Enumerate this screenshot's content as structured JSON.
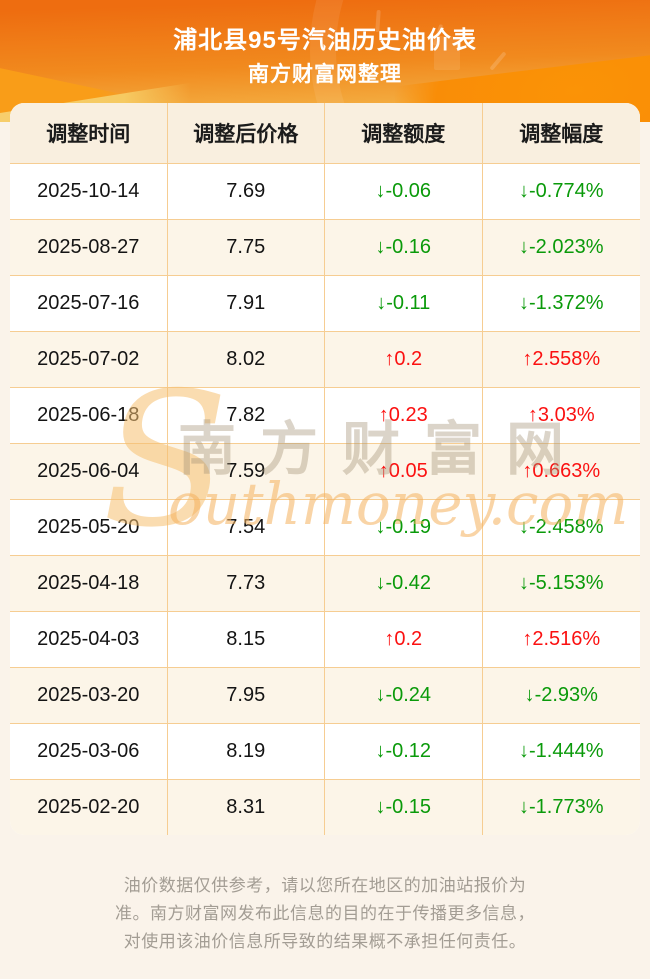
{
  "page": {
    "title": "浦北县95号汽油历史油价表",
    "subtitle": "南方财富网整理"
  },
  "table": {
    "headers": [
      "调整时间",
      "调整后价格",
      "调整额度",
      "调整幅度"
    ],
    "rows": [
      {
        "date": "2025-10-14",
        "price": "7.69",
        "amount": "↓-0.06",
        "rate": "↓-0.774%",
        "direction": "down"
      },
      {
        "date": "2025-08-27",
        "price": "7.75",
        "amount": "↓-0.16",
        "rate": "↓-2.023%",
        "direction": "down"
      },
      {
        "date": "2025-07-16",
        "price": "7.91",
        "amount": "↓-0.11",
        "rate": "↓-1.372%",
        "direction": "down"
      },
      {
        "date": "2025-07-02",
        "price": "8.02",
        "amount": "↑0.2",
        "rate": "↑2.558%",
        "direction": "up"
      },
      {
        "date": "2025-06-18",
        "price": "7.82",
        "amount": "↑0.23",
        "rate": "↑3.03%",
        "direction": "up"
      },
      {
        "date": "2025-06-04",
        "price": "7.59",
        "amount": "↑0.05",
        "rate": "↑0.663%",
        "direction": "up"
      },
      {
        "date": "2025-05-20",
        "price": "7.54",
        "amount": "↓-0.19",
        "rate": "↓-2.458%",
        "direction": "down"
      },
      {
        "date": "2025-04-18",
        "price": "7.73",
        "amount": "↓-0.42",
        "rate": "↓-5.153%",
        "direction": "down"
      },
      {
        "date": "2025-04-03",
        "price": "8.15",
        "amount": "↑0.2",
        "rate": "↑2.516%",
        "direction": "up"
      },
      {
        "date": "2025-03-20",
        "price": "7.95",
        "amount": "↓-0.24",
        "rate": "↓-2.93%",
        "direction": "down"
      },
      {
        "date": "2025-03-06",
        "price": "8.19",
        "amount": "↓-0.12",
        "rate": "↓-1.444%",
        "direction": "down"
      },
      {
        "date": "2025-02-20",
        "price": "8.31",
        "amount": "↓-0.15",
        "rate": "↓-1.773%",
        "direction": "down"
      }
    ]
  },
  "watermark": {
    "initial": "S",
    "cn": "南方财富网",
    "latin": "outhmoney.com"
  },
  "footer": {
    "lines": [
      "油价数据仅供参考，请以您所在地区的加油站报价为",
      "准。南方财富网发布此信息的目的在于传播更多信息，",
      "对使用该油价信息所导致的结果概不承担任何责任。"
    ]
  },
  "colors": {
    "up_red": "#fb1111",
    "down_green": "#0a9a0a",
    "hero_gradient_top": "#ee6d10",
    "hero_gradient_bottom": "#f5c155",
    "table_border": "#f6cd92",
    "table_header_bg": "#f9efdf",
    "row_alt_bg": "#fcf5e8",
    "page_bg": "#faf3ea",
    "footer_text": "#a39d94"
  }
}
